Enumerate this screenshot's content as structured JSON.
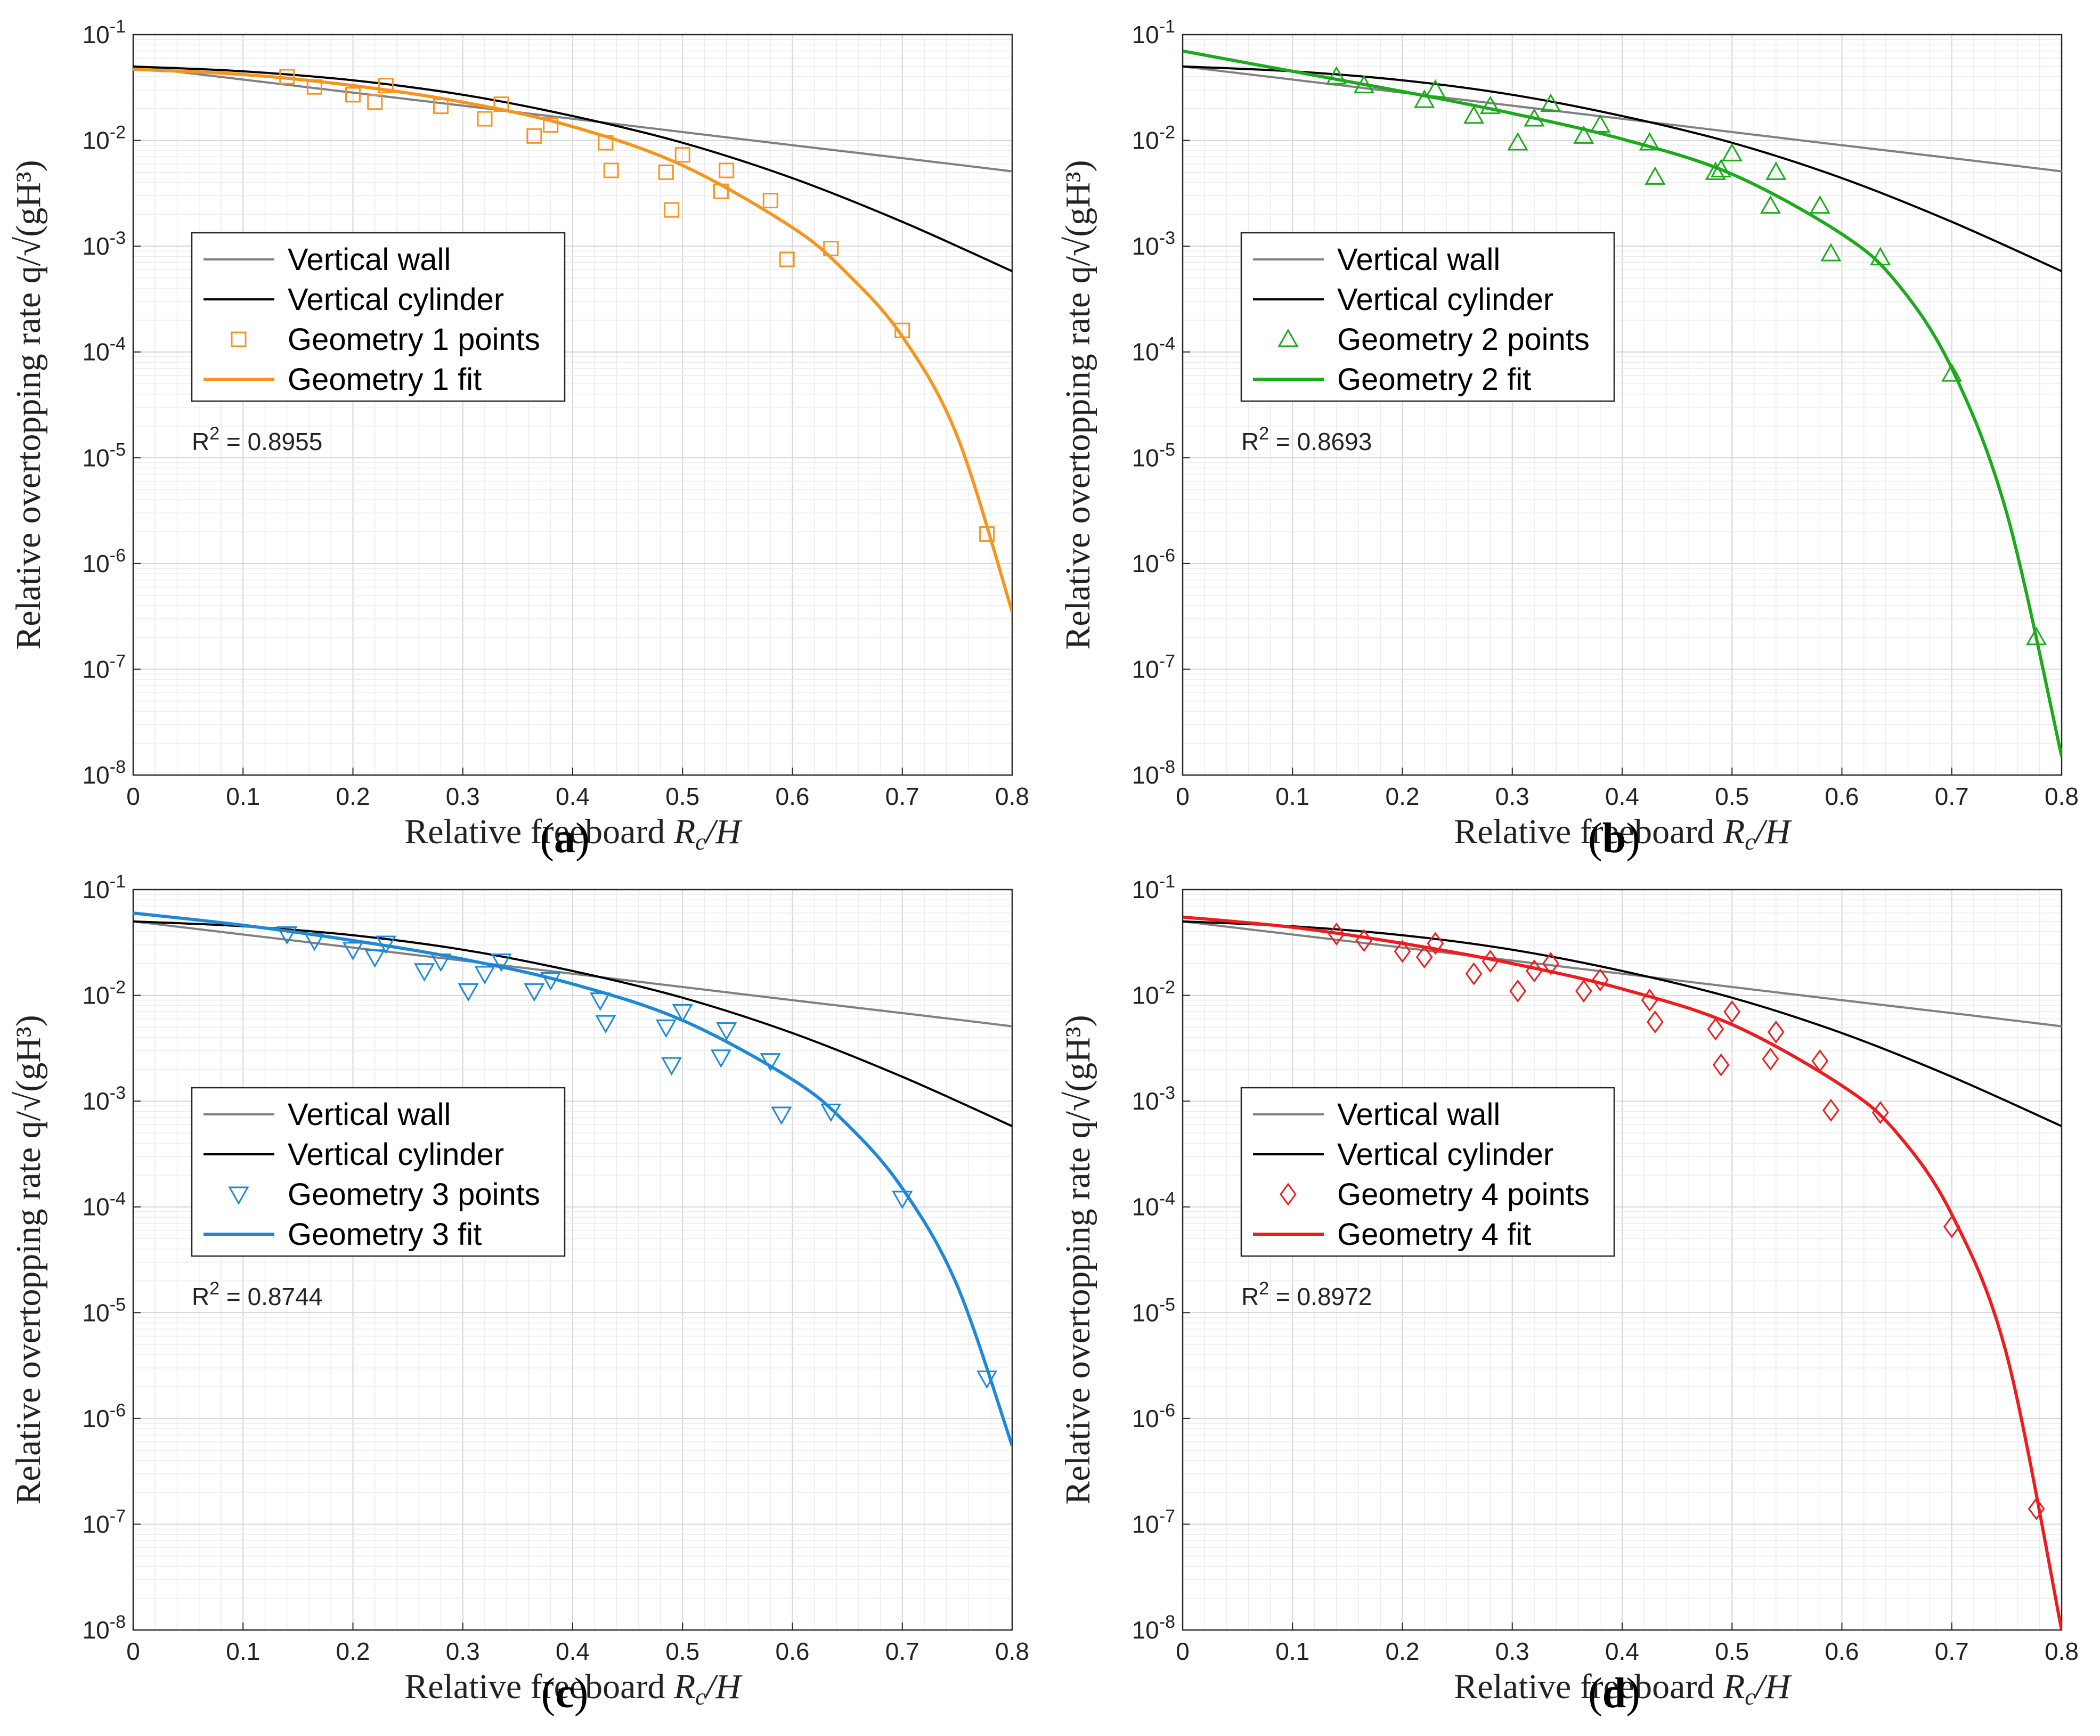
{
  "figure": {
    "caption_labels": [
      "(a)",
      "(b)",
      "(c)",
      "(d)"
    ]
  },
  "chart_data": [
    {
      "type": "line",
      "panel_label": "(a)",
      "xlabel": "Relative freeboard R_c/H",
      "ylabel": "Relative overtopping rate q/√(gH³)",
      "yscale": "log",
      "xlim": [
        0,
        0.8
      ],
      "ylim": [
        1e-08,
        0.1
      ],
      "xticks": [
        "0",
        "0.1",
        "0.2",
        "0.3",
        "0.4",
        "0.5",
        "0.6",
        "0.7",
        "0.8"
      ],
      "yticks": [
        "10^-8",
        "10^-7",
        "10^-6",
        "10^-5",
        "10^-4",
        "10^-3",
        "10^-2",
        "10^-1"
      ],
      "grid": true,
      "legend_position": "center-left",
      "annotation": "R^2 = 0.8955",
      "color": "#F7941D",
      "marker": "square",
      "series": [
        {
          "name": "Vertical wall",
          "color": "#808080",
          "x": [
            0,
            0.1,
            0.2,
            0.3,
            0.4,
            0.5,
            0.6,
            0.7,
            0.8
          ],
          "y": [
            0.05,
            0.0376,
            0.0283,
            0.0213,
            0.016,
            0.012,
            0.009,
            0.0068,
            0.0051
          ]
        },
        {
          "name": "Vertical cylinder",
          "color": "#000000",
          "x": [
            0,
            0.1,
            0.2,
            0.3,
            0.4,
            0.5,
            0.6,
            0.7,
            0.8
          ],
          "y": [
            0.05,
            0.045,
            0.037,
            0.027,
            0.017,
            0.0095,
            0.0044,
            0.0017,
            0.00058
          ]
        },
        {
          "name": "Geometry 1 points",
          "type": "scatter",
          "x": [
            0.14,
            0.165,
            0.2,
            0.22,
            0.23,
            0.28,
            0.32,
            0.335,
            0.365,
            0.38,
            0.43,
            0.435,
            0.485,
            0.49,
            0.5,
            0.535,
            0.54,
            0.58,
            0.595,
            0.635,
            0.7,
            0.777
          ],
          "y": [
            0.04,
            0.032,
            0.027,
            0.023,
            0.033,
            0.021,
            0.016,
            0.022,
            0.011,
            0.014,
            0.0095,
            0.0052,
            0.005,
            0.0022,
            0.0073,
            0.0033,
            0.0052,
            0.0027,
            0.00075,
            0.00095,
            0.00016,
            1.9e-06
          ]
        },
        {
          "name": "Geometry 1 fit",
          "x": [
            0,
            0.1,
            0.2,
            0.3,
            0.4,
            0.5,
            0.6,
            0.65,
            0.7,
            0.75,
            0.8
          ],
          "y": [
            0.047,
            0.042,
            0.033,
            0.023,
            0.0135,
            0.0058,
            0.0015,
            0.00055,
            0.00014,
            1.6e-05,
            3.5e-07
          ]
        }
      ]
    },
    {
      "type": "line",
      "panel_label": "(b)",
      "xlabel": "Relative freeboard R_c/H",
      "ylabel": "Relative overtopping rate q/√(gH³)",
      "yscale": "log",
      "xlim": [
        0,
        0.8
      ],
      "ylim": [
        1e-08,
        0.1
      ],
      "xticks": [
        "0",
        "0.1",
        "0.2",
        "0.3",
        "0.4",
        "0.5",
        "0.6",
        "0.7",
        "0.8"
      ],
      "yticks": [
        "10^-8",
        "10^-7",
        "10^-6",
        "10^-5",
        "10^-4",
        "10^-3",
        "10^-2",
        "10^-1"
      ],
      "grid": true,
      "legend_position": "center-left",
      "annotation": "R^2 = 0.8693",
      "color": "#1AAA1A",
      "marker": "triangle-up",
      "series": [
        {
          "name": "Vertical wall",
          "color": "#808080",
          "x": [
            0,
            0.1,
            0.2,
            0.3,
            0.4,
            0.5,
            0.6,
            0.7,
            0.8
          ],
          "y": [
            0.05,
            0.0376,
            0.0283,
            0.0213,
            0.016,
            0.012,
            0.009,
            0.0068,
            0.0051
          ]
        },
        {
          "name": "Vertical cylinder",
          "color": "#000000",
          "x": [
            0,
            0.1,
            0.2,
            0.3,
            0.4,
            0.5,
            0.6,
            0.7,
            0.8
          ],
          "y": [
            0.05,
            0.045,
            0.037,
            0.027,
            0.017,
            0.0095,
            0.0044,
            0.0017,
            0.00058
          ]
        },
        {
          "name": "Geometry 2 points",
          "type": "scatter",
          "x": [
            0.14,
            0.165,
            0.22,
            0.23,
            0.265,
            0.28,
            0.305,
            0.32,
            0.335,
            0.365,
            0.38,
            0.425,
            0.43,
            0.485,
            0.49,
            0.5,
            0.535,
            0.54,
            0.58,
            0.59,
            0.635,
            0.7,
            0.777
          ],
          "y": [
            0.04,
            0.033,
            0.024,
            0.03,
            0.017,
            0.021,
            0.0095,
            0.016,
            0.022,
            0.011,
            0.014,
            0.0095,
            0.0045,
            0.005,
            0.0053,
            0.0075,
            0.0024,
            0.005,
            0.0024,
            0.00085,
            0.00078,
            6.2e-05,
            2e-07
          ]
        },
        {
          "name": "Geometry 2 fit",
          "x": [
            0,
            0.1,
            0.2,
            0.3,
            0.4,
            0.5,
            0.6,
            0.65,
            0.7,
            0.75,
            0.8
          ],
          "y": [
            0.07,
            0.045,
            0.029,
            0.018,
            0.0103,
            0.0048,
            0.0013,
            0.00045,
            7e-05,
            3e-06,
            1.5e-08
          ]
        }
      ]
    },
    {
      "type": "line",
      "panel_label": "(c)",
      "xlabel": "Relative freeboard R_c/H",
      "ylabel": "Relative overtopping rate q/√(gH³)",
      "yscale": "log",
      "xlim": [
        0,
        0.8
      ],
      "ylim": [
        1e-08,
        0.1
      ],
      "xticks": [
        "0",
        "0.1",
        "0.2",
        "0.3",
        "0.4",
        "0.5",
        "0.6",
        "0.7",
        "0.8"
      ],
      "yticks": [
        "10^-8",
        "10^-7",
        "10^-6",
        "10^-5",
        "10^-4",
        "10^-3",
        "10^-2",
        "10^-1"
      ],
      "grid": true,
      "legend_position": "center-left",
      "annotation": "R^2 = 0.8744",
      "color": "#1E88D8",
      "marker": "triangle-down",
      "series": [
        {
          "name": "Vertical wall",
          "color": "#808080",
          "x": [
            0,
            0.1,
            0.2,
            0.3,
            0.4,
            0.5,
            0.6,
            0.7,
            0.8
          ],
          "y": [
            0.05,
            0.0376,
            0.0283,
            0.0213,
            0.016,
            0.012,
            0.009,
            0.0068,
            0.0051
          ]
        },
        {
          "name": "Vertical cylinder",
          "color": "#000000",
          "x": [
            0,
            0.1,
            0.2,
            0.3,
            0.4,
            0.5,
            0.6,
            0.7,
            0.8
          ],
          "y": [
            0.05,
            0.045,
            0.037,
            0.027,
            0.017,
            0.0095,
            0.0044,
            0.0017,
            0.00058
          ]
        },
        {
          "name": "Geometry 3 points",
          "type": "scatter",
          "x": [
            0.14,
            0.165,
            0.2,
            0.22,
            0.23,
            0.265,
            0.28,
            0.305,
            0.32,
            0.335,
            0.365,
            0.38,
            0.425,
            0.43,
            0.485,
            0.49,
            0.5,
            0.535,
            0.54,
            0.58,
            0.59,
            0.635,
            0.7,
            0.777
          ],
          "y": [
            0.038,
            0.033,
            0.027,
            0.023,
            0.031,
            0.017,
            0.021,
            0.011,
            0.016,
            0.021,
            0.011,
            0.014,
            0.009,
            0.0055,
            0.005,
            0.0022,
            0.007,
            0.0026,
            0.0047,
            0.0024,
            0.00075,
            0.0008,
            0.00012,
            2.4e-06
          ]
        },
        {
          "name": "Geometry 3 fit",
          "x": [
            0,
            0.1,
            0.2,
            0.3,
            0.4,
            0.5,
            0.6,
            0.65,
            0.7,
            0.75,
            0.8
          ],
          "y": [
            0.06,
            0.046,
            0.033,
            0.022,
            0.0128,
            0.0058,
            0.0016,
            0.0006,
            0.00015,
            1.8e-05,
            5.5e-07
          ]
        }
      ]
    },
    {
      "type": "line",
      "panel_label": "(d)",
      "xlabel": "Relative freeboard R_c/H",
      "ylabel": "Relative overtopping rate q/√(gH³)",
      "yscale": "log",
      "xlim": [
        0,
        0.8
      ],
      "ylim": [
        1e-08,
        0.1
      ],
      "xticks": [
        "0",
        "0.1",
        "0.2",
        "0.3",
        "0.4",
        "0.5",
        "0.6",
        "0.7",
        "0.8"
      ],
      "yticks": [
        "10^-8",
        "10^-7",
        "10^-6",
        "10^-5",
        "10^-4",
        "10^-3",
        "10^-2",
        "10^-1"
      ],
      "grid": true,
      "legend_position": "center-left",
      "annotation": "R^2 = 0.8972",
      "color": "#EE1C1C",
      "marker": "diamond",
      "series": [
        {
          "name": "Vertical wall",
          "color": "#808080",
          "x": [
            0,
            0.1,
            0.2,
            0.3,
            0.4,
            0.5,
            0.6,
            0.7,
            0.8
          ],
          "y": [
            0.05,
            0.0376,
            0.0283,
            0.0213,
            0.016,
            0.012,
            0.009,
            0.0068,
            0.0051
          ]
        },
        {
          "name": "Vertical cylinder",
          "color": "#000000",
          "x": [
            0,
            0.1,
            0.2,
            0.3,
            0.4,
            0.5,
            0.6,
            0.7,
            0.8
          ],
          "y": [
            0.05,
            0.045,
            0.037,
            0.027,
            0.017,
            0.0095,
            0.0044,
            0.0017,
            0.00058
          ]
        },
        {
          "name": "Geometry 4 points",
          "type": "scatter",
          "x": [
            0.14,
            0.165,
            0.2,
            0.22,
            0.23,
            0.265,
            0.28,
            0.305,
            0.32,
            0.335,
            0.365,
            0.38,
            0.425,
            0.43,
            0.485,
            0.49,
            0.5,
            0.535,
            0.54,
            0.58,
            0.59,
            0.635,
            0.7,
            0.777
          ],
          "y": [
            0.038,
            0.033,
            0.026,
            0.023,
            0.031,
            0.016,
            0.021,
            0.011,
            0.017,
            0.02,
            0.011,
            0.014,
            0.009,
            0.0056,
            0.0048,
            0.0022,
            0.007,
            0.0025,
            0.0045,
            0.0024,
            0.00082,
            0.00078,
            6.5e-05,
            1.4e-07
          ]
        },
        {
          "name": "Geometry 4 fit",
          "x": [
            0,
            0.1,
            0.2,
            0.3,
            0.4,
            0.5,
            0.6,
            0.65,
            0.7,
            0.75,
            0.8
          ],
          "y": [
            0.055,
            0.044,
            0.031,
            0.02,
            0.0115,
            0.0053,
            0.0014,
            0.0005,
            8.5e-05,
            4e-06,
            1e-08
          ]
        }
      ]
    }
  ]
}
